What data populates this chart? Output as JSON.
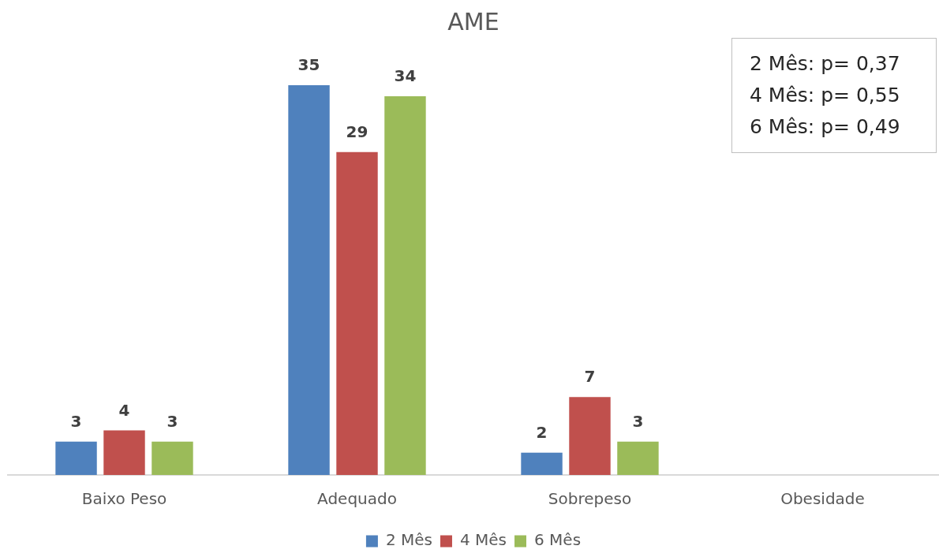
{
  "chart_data": {
    "type": "bar",
    "title": "AME",
    "categories": [
      "Baixo Peso",
      "Adequado",
      "Sobrepeso",
      "Obesidade"
    ],
    "series": [
      {
        "name": "2 Mês",
        "color": "#4f81bd",
        "values": [
          3,
          35,
          2,
          null
        ]
      },
      {
        "name": "4 Mês",
        "color": "#c0504d",
        "values": [
          4,
          29,
          7,
          null
        ]
      },
      {
        "name": "6 Mês",
        "color": "#9bbb59",
        "values": [
          3,
          34,
          3,
          null
        ]
      }
    ],
    "data_labels": true,
    "grid": false,
    "legend": "bottom",
    "annotations": [
      "2 Mês: p= 0,37",
      "4 Mês: p= 0,55",
      "6 Mês: p= 0,49"
    ]
  }
}
